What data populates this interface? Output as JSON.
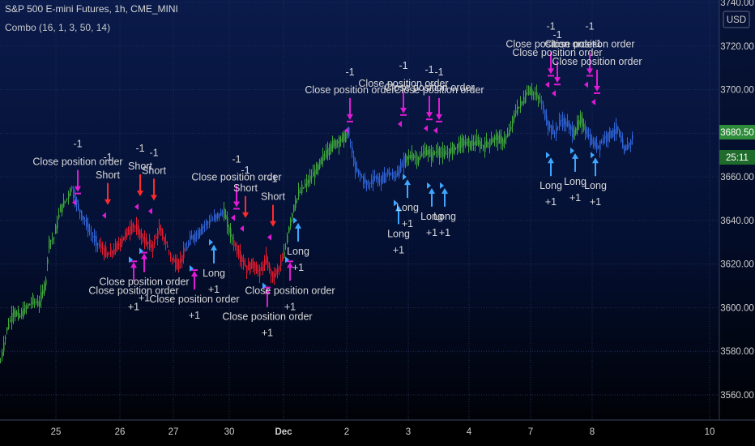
{
  "header": {
    "symbol_title": "S&P 500 E-mini Futures, 1h, CME_MINI",
    "indicator_label": "Combo (16, 1, 3, 50, 14)"
  },
  "price_axis": {
    "currency": "USD",
    "last_price_label": "3680.50",
    "countdown_label": "25:11"
  },
  "colors": {
    "background_top": "#0a1a4a",
    "background_bottom": "#000000",
    "grid": "#1e2f55",
    "bull": "#3fa63b",
    "bear": "#e21b2d",
    "neutral": "#2f63d6",
    "close_marker": "#e01bd6",
    "long_marker": "#3fa7ff",
    "short_marker": "#ff2b2b",
    "price_badge": "#2e8b3a"
  },
  "chart_data": {
    "type": "candlestick",
    "title": "S&P 500 E-mini Futures, 1h, CME_MINI",
    "y_range": [
      3550,
      3740
    ],
    "y_ticks": [
      3560,
      3580,
      3600,
      3620,
      3640,
      3660,
      3680,
      3700,
      3720,
      3740
    ],
    "y_tick_labels": [
      "3560.00",
      "3580.00",
      "3600.00",
      "3620.00",
      "3640.00",
      "3660.00",
      "3680.00",
      "3700.00",
      "3720.00",
      "3740.00"
    ],
    "x_tick_labels": [
      "25",
      "26",
      "27",
      "30",
      "Dec",
      "2",
      "3",
      "4",
      "7",
      "8",
      "10"
    ],
    "last_price": 3680.5,
    "segments": [
      {
        "color": "bull",
        "start": 0,
        "points": [
          [
            0,
            3575
          ],
          [
            8,
            3590
          ],
          [
            16,
            3598
          ],
          [
            24,
            3596
          ],
          [
            32,
            3600
          ],
          [
            40,
            3603
          ],
          [
            48,
            3602
          ],
          [
            56,
            3612
          ],
          [
            60,
            3630
          ],
          [
            66,
            3632
          ],
          [
            74,
            3645
          ],
          [
            82,
            3650
          ],
          [
            88,
            3655
          ]
        ]
      },
      {
        "color": "neutral",
        "start": 88,
        "points": [
          [
            88,
            3655
          ],
          [
            96,
            3646
          ],
          [
            104,
            3640
          ],
          [
            112,
            3634
          ],
          [
            118,
            3630
          ],
          [
            124,
            3628
          ]
        ]
      },
      {
        "color": "bear",
        "start": 124,
        "points": [
          [
            124,
            3628
          ],
          [
            132,
            3624
          ],
          [
            140,
            3626
          ],
          [
            148,
            3630
          ],
          [
            156,
            3634
          ],
          [
            164,
            3638
          ],
          [
            172,
            3634
          ],
          [
            180,
            3630
          ],
          [
            188,
            3628
          ],
          [
            196,
            3636
          ],
          [
            204,
            3630
          ],
          [
            212,
            3622
          ],
          [
            220,
            3620
          ],
          [
            228,
            3626
          ]
        ]
      },
      {
        "color": "neutral",
        "start": 228,
        "points": [
          [
            228,
            3626
          ],
          [
            236,
            3632
          ],
          [
            244,
            3634
          ],
          [
            252,
            3638
          ],
          [
            260,
            3640
          ],
          [
            268,
            3642
          ],
          [
            276,
            3644
          ]
        ]
      },
      {
        "color": "bull",
        "start": 276,
        "points": [
          [
            276,
            3644
          ],
          [
            282,
            3636
          ],
          [
            288,
            3630
          ]
        ]
      },
      {
        "color": "bear",
        "start": 288,
        "points": [
          [
            288,
            3630
          ],
          [
            296,
            3624
          ],
          [
            304,
            3618
          ],
          [
            312,
            3620
          ],
          [
            320,
            3616
          ],
          [
            328,
            3622
          ],
          [
            336,
            3614
          ],
          [
            344,
            3618
          ],
          [
            350,
            3624
          ]
        ]
      },
      {
        "color": "bull",
        "start": 350,
        "points": [
          [
            350,
            3624
          ],
          [
            356,
            3636
          ],
          [
            362,
            3646
          ],
          [
            368,
            3652
          ],
          [
            376,
            3656
          ],
          [
            384,
            3660
          ],
          [
            392,
            3664
          ],
          [
            400,
            3670
          ],
          [
            408,
            3674
          ],
          [
            416,
            3676
          ],
          [
            424,
            3678
          ],
          [
            430,
            3680
          ]
        ]
      },
      {
        "color": "neutral",
        "start": 430,
        "points": [
          [
            430,
            3680
          ],
          [
            438,
            3664
          ],
          [
            446,
            3660
          ],
          [
            454,
            3656
          ],
          [
            462,
            3660
          ],
          [
            470,
            3658
          ],
          [
            478,
            3662
          ],
          [
            486,
            3660
          ],
          [
            494,
            3664
          ],
          [
            500,
            3668
          ]
        ]
      },
      {
        "color": "bull",
        "start": 500,
        "points": [
          [
            500,
            3668
          ],
          [
            508,
            3670
          ],
          [
            516,
            3668
          ],
          [
            524,
            3672
          ],
          [
            532,
            3670
          ],
          [
            540,
            3672
          ],
          [
            548,
            3670
          ],
          [
            556,
            3672
          ],
          [
            564,
            3674
          ],
          [
            572,
            3676
          ],
          [
            580,
            3675
          ],
          [
            588,
            3676
          ],
          [
            596,
            3674
          ],
          [
            604,
            3676
          ],
          [
            612,
            3678
          ],
          [
            620,
            3676
          ],
          [
            628,
            3680
          ],
          [
            636,
            3690
          ],
          [
            644,
            3694
          ],
          [
            652,
            3700
          ],
          [
            660,
            3698
          ],
          [
            668,
            3694
          ]
        ]
      },
      {
        "color": "neutral",
        "start": 668,
        "points": [
          [
            668,
            3694
          ],
          [
            676,
            3684
          ],
          [
            684,
            3680
          ],
          [
            692,
            3686
          ],
          [
            700,
            3684
          ],
          [
            708,
            3680
          ]
        ]
      },
      {
        "color": "bull",
        "start": 708,
        "points": [
          [
            708,
            3680
          ],
          [
            716,
            3686
          ],
          [
            722,
            3682
          ]
        ]
      },
      {
        "color": "neutral",
        "start": 722,
        "points": [
          [
            722,
            3682
          ],
          [
            730,
            3676
          ],
          [
            738,
            3674
          ],
          [
            746,
            3678
          ],
          [
            754,
            3680
          ],
          [
            762,
            3682
          ],
          [
            770,
            3672
          ],
          [
            778,
            3676
          ],
          [
            782,
            3680
          ]
        ]
      }
    ],
    "signals": [
      {
        "kind": "short",
        "x": 96,
        "price": 3652,
        "texts": [
          "-1",
          "Close position order"
        ]
      },
      {
        "kind": "short",
        "x": 133,
        "price": 3646,
        "texts": [
          "-1",
          "Short"
        ]
      },
      {
        "kind": "short",
        "x": 173,
        "price": 3650,
        "texts": [
          "-1",
          "Short"
        ]
      },
      {
        "kind": "short",
        "x": 190,
        "price": 3648,
        "texts": [
          "-1",
          "Short"
        ]
      },
      {
        "kind": "short",
        "x": 292,
        "price": 3645,
        "texts": [
          "-1",
          "Close position order"
        ]
      },
      {
        "kind": "short",
        "x": 303,
        "price": 3640,
        "texts": [
          "-1",
          "Short"
        ]
      },
      {
        "kind": "short",
        "x": 337,
        "price": 3636,
        "texts": [
          "-1",
          "Short"
        ]
      },
      {
        "kind": "short",
        "x": 432,
        "price": 3685,
        "texts": [
          "-1",
          "Close position order"
        ]
      },
      {
        "kind": "short",
        "x": 498,
        "price": 3688,
        "texts": [
          "-1",
          "Close position order"
        ]
      },
      {
        "kind": "short",
        "x": 530,
        "price": 3686,
        "texts": [
          "-1",
          "Close position order"
        ]
      },
      {
        "kind": "short",
        "x": 542,
        "price": 3685,
        "texts": [
          "-1",
          "Close position order"
        ]
      },
      {
        "kind": "short",
        "x": 680,
        "price": 3706,
        "texts": [
          "-1",
          "Close position order"
        ]
      },
      {
        "kind": "short",
        "x": 688,
        "price": 3702,
        "texts": [
          "-1",
          "Close position order"
        ]
      },
      {
        "kind": "short",
        "x": 728,
        "price": 3706,
        "texts": [
          "-1",
          "Close position order"
        ]
      },
      {
        "kind": "short",
        "x": 737,
        "price": 3698,
        "texts": [
          "-1",
          "Close position order"
        ]
      },
      {
        "kind": "long",
        "x": 165,
        "price": 3622,
        "texts": [
          "Close position order",
          "+1"
        ]
      },
      {
        "kind": "long",
        "x": 178,
        "price": 3626,
        "texts": [
          "Close position order",
          "+1"
        ]
      },
      {
        "kind": "long",
        "x": 240,
        "price": 3618,
        "texts": [
          "Close position order",
          "+1"
        ]
      },
      {
        "kind": "long",
        "x": 264,
        "price": 3630,
        "texts": [
          "Long",
          "+1"
        ]
      },
      {
        "kind": "long",
        "x": 330,
        "price": 3610,
        "texts": [
          "Close position order",
          "+1"
        ]
      },
      {
        "kind": "long",
        "x": 358,
        "price": 3622,
        "texts": [
          "Close position order",
          "+1"
        ]
      },
      {
        "kind": "long",
        "x": 368,
        "price": 3640,
        "texts": [
          "Long",
          "+1"
        ]
      },
      {
        "kind": "long",
        "x": 492,
        "price": 3648,
        "texts": [
          "Long",
          "+1"
        ]
      },
      {
        "kind": "long",
        "x": 503,
        "price": 3660,
        "texts": [
          "Long",
          "+1"
        ]
      },
      {
        "kind": "long",
        "x": 533,
        "price": 3656,
        "texts": [
          "Long",
          "+1"
        ]
      },
      {
        "kind": "long",
        "x": 549,
        "price": 3656,
        "texts": [
          "Long",
          "+1"
        ]
      },
      {
        "kind": "long",
        "x": 680,
        "price": 3670,
        "texts": [
          "Long",
          "+1"
        ]
      },
      {
        "kind": "long",
        "x": 710,
        "price": 3672,
        "texts": [
          "Long",
          "+1"
        ]
      },
      {
        "kind": "long",
        "x": 735,
        "price": 3670,
        "texts": [
          "Long",
          "+1"
        ]
      }
    ]
  }
}
